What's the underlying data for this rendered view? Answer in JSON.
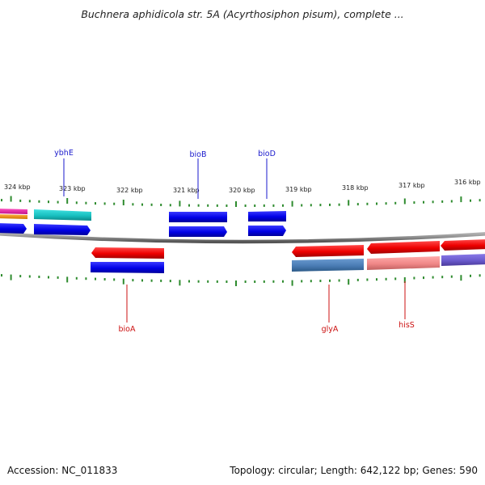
{
  "title": "Buchnera aphidicola str. 5A (Acyrthosiphon pisum), complete ...",
  "footer": {
    "accession": "Accession: NC_011833",
    "summary": "Topology: circular; Length: 642,122 bp; Genes: 590"
  },
  "colors": {
    "forward_label": "#1a1acc",
    "reverse_label": "#cc1111",
    "backbone": "#8a8a8a",
    "tick": "#2e8b2e"
  },
  "kbp_labels": [
    "324 kbp",
    "323 kbp",
    "322 kbp",
    "321 kbp",
    "320 kbp",
    "319 kbp",
    "318 kbp",
    "317 kbp",
    "316 kbp"
  ],
  "gene_labels": [
    {
      "name": "ybhE",
      "strand": "forward"
    },
    {
      "name": "bioB",
      "strand": "forward"
    },
    {
      "name": "bioD",
      "strand": "forward"
    },
    {
      "name": "bioA",
      "strand": "reverse"
    },
    {
      "name": "glyA",
      "strand": "reverse"
    },
    {
      "name": "hisS",
      "strand": "reverse"
    }
  ]
}
